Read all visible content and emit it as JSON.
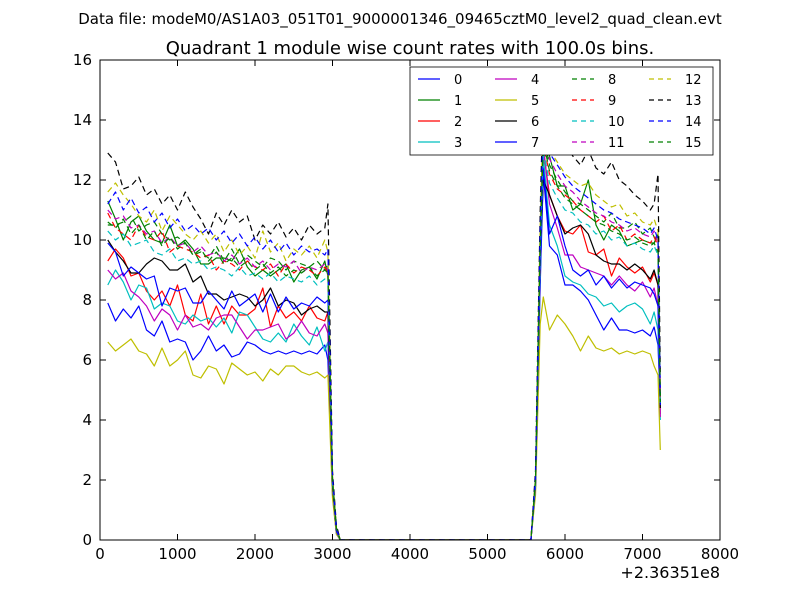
{
  "chart_data": {
    "type": "line",
    "suptitle": "Data file: modeM0/AS1A03_051T01_9000001346_09465cztM0_level2_quad_clean.evt",
    "title": "Quadrant 1 module wise count rates with 100.0s bins.",
    "xlabel": "",
    "ylabel": "",
    "x_offset_label": "+2.36351e8",
    "xlim": [
      0,
      8000
    ],
    "ylim": [
      0,
      16
    ],
    "x_ticks": [
      0,
      1000,
      2000,
      3000,
      4000,
      5000,
      6000,
      7000,
      8000
    ],
    "y_ticks": [
      0,
      2,
      4,
      6,
      8,
      10,
      12,
      14,
      16
    ],
    "legend_position": "top-right",
    "legend_columns": 4,
    "grid": false,
    "x": [
      100,
      200,
      300,
      400,
      500,
      600,
      700,
      800,
      900,
      1000,
      1100,
      1200,
      1300,
      1400,
      1500,
      1600,
      1700,
      1800,
      1900,
      2000,
      2100,
      2200,
      2300,
      2400,
      2500,
      2600,
      2700,
      2800,
      2900,
      2940,
      3000,
      3050,
      3100,
      3200,
      3500,
      4000,
      4500,
      5000,
      5400,
      5560,
      5620,
      5680,
      5720,
      5800,
      5900,
      6000,
      6100,
      6200,
      6300,
      6400,
      6500,
      6600,
      6700,
      6800,
      6900,
      7000,
      7100,
      7150,
      7200,
      7230
    ],
    "series": [
      {
        "name": "0",
        "color": "#0000ff",
        "style": "solid",
        "values": [
          7.9,
          7.3,
          7.7,
          7.4,
          7.8,
          7.0,
          6.8,
          7.3,
          6.6,
          6.7,
          6.6,
          6.0,
          6.3,
          6.8,
          6.3,
          6.5,
          6.1,
          6.2,
          6.6,
          6.5,
          6.3,
          6.2,
          6.3,
          6.2,
          6.3,
          6.2,
          6.3,
          6.2,
          6.5,
          6.0,
          1.5,
          0.2,
          0,
          0,
          0,
          0,
          0,
          0,
          0,
          0,
          1.8,
          8.5,
          12.2,
          9.8,
          9.5,
          8.5,
          8.5,
          8.3,
          8.0,
          7.5,
          7.0,
          7.4,
          7.0,
          7.0,
          6.9,
          7.0,
          6.8,
          7.1,
          6.5,
          4.5
        ]
      },
      {
        "name": "1",
        "color": "#008000",
        "style": "solid",
        "values": [
          11.3,
          10.7,
          10.0,
          10.6,
          10.8,
          10.3,
          10.0,
          9.9,
          10.5,
          9.8,
          10.0,
          9.7,
          9.2,
          9.2,
          9.4,
          9.4,
          9.3,
          9.7,
          9.1,
          8.8,
          9.0,
          8.8,
          9.0,
          9.2,
          8.6,
          9.0,
          9.1,
          8.7,
          9.3,
          8.8,
          2.0,
          0.4,
          0,
          0,
          0,
          0,
          0,
          0,
          0,
          0,
          1.9,
          9.5,
          13.6,
          12.8,
          11.8,
          11.8,
          11.0,
          11.2,
          12.0,
          10.5,
          10.0,
          10.5,
          10.3,
          9.8,
          9.9,
          10.0,
          9.9,
          9.9,
          10.2,
          4.5
        ]
      },
      {
        "name": "2",
        "color": "#ff0000",
        "style": "solid",
        "values": [
          9.3,
          9.7,
          9.4,
          8.8,
          8.9,
          8.3,
          8.0,
          8.3,
          7.8,
          8.5,
          7.5,
          7.3,
          8.2,
          7.2,
          7.8,
          7.2,
          7.8,
          7.5,
          7.5,
          7.7,
          8.4,
          7.1,
          7.8,
          7.4,
          7.6,
          7.3,
          7.8,
          7.4,
          7.3,
          7.6,
          1.8,
          0.3,
          0,
          0,
          0,
          0,
          0,
          0,
          0,
          0,
          1.8,
          9.2,
          13.0,
          11.5,
          10.8,
          10.3,
          10.2,
          10.5,
          9.6,
          9.5,
          9.7,
          8.8,
          9.4,
          9.1,
          8.9,
          9.1,
          8.6,
          8.9,
          8.5,
          4.2
        ]
      },
      {
        "name": "3",
        "color": "#00bfbf",
        "style": "solid",
        "values": [
          8.5,
          9.0,
          8.6,
          8.0,
          8.5,
          8.4,
          7.7,
          7.9,
          7.8,
          7.3,
          7.2,
          7.5,
          7.3,
          7.4,
          7.1,
          7.4,
          6.9,
          7.6,
          7.5,
          7.1,
          6.7,
          6.6,
          6.9,
          6.6,
          7.2,
          6.8,
          6.5,
          7.1,
          6.3,
          6.6,
          1.6,
          0.3,
          0,
          0,
          0,
          0,
          0,
          0,
          0,
          0,
          1.7,
          8.8,
          12.8,
          10.5,
          9.8,
          8.8,
          8.6,
          8.5,
          8.2,
          8.1,
          7.8,
          7.9,
          7.6,
          7.8,
          7.9,
          7.7,
          7.2,
          7.6,
          7.0,
          4.0
        ]
      },
      {
        "name": "4",
        "color": "#bf00bf",
        "style": "solid",
        "values": [
          9.0,
          8.7,
          8.9,
          8.3,
          8.1,
          7.8,
          7.3,
          7.7,
          7.5,
          7.0,
          7.5,
          7.1,
          7.2,
          7.0,
          7.4,
          7.5,
          7.5,
          7.1,
          6.7,
          7.0,
          7.0,
          7.1,
          7.2,
          6.7,
          6.9,
          7.3,
          6.9,
          6.8,
          7.2,
          6.9,
          1.6,
          0.3,
          0,
          0,
          0,
          0,
          0,
          0,
          0,
          0,
          1.8,
          9.0,
          13.2,
          11.2,
          10.4,
          9.5,
          9.5,
          9.1,
          9.0,
          8.9,
          8.8,
          8.5,
          8.8,
          8.5,
          8.3,
          8.6,
          8.1,
          8.4,
          7.8,
          4.1
        ]
      },
      {
        "name": "5",
        "color": "#bfbf00",
        "style": "solid",
        "values": [
          6.6,
          6.3,
          6.5,
          6.7,
          6.3,
          6.2,
          5.8,
          6.4,
          5.8,
          6.0,
          6.3,
          5.5,
          5.4,
          5.8,
          5.7,
          5.2,
          5.9,
          5.7,
          5.5,
          5.6,
          5.3,
          5.7,
          5.5,
          5.8,
          5.8,
          5.6,
          5.5,
          5.6,
          5.4,
          5.5,
          1.4,
          0.2,
          0,
          0,
          0,
          0,
          0,
          0,
          0,
          0,
          1.5,
          7.2,
          8.1,
          7.0,
          7.5,
          7.2,
          6.8,
          6.3,
          6.8,
          6.4,
          6.3,
          6.4,
          6.2,
          6.3,
          6.2,
          6.3,
          6.2,
          5.8,
          5.5,
          3.0
        ]
      },
      {
        "name": "6",
        "color": "#000000",
        "style": "solid",
        "values": [
          10.0,
          9.6,
          9.3,
          8.9,
          8.9,
          9.2,
          9.4,
          9.3,
          9.0,
          9.0,
          9.2,
          8.6,
          8.8,
          8.2,
          8.2,
          8.0,
          8.1,
          8.2,
          8.1,
          7.8,
          8.0,
          8.4,
          7.8,
          8.0,
          7.9,
          7.5,
          7.7,
          7.8,
          7.6,
          7.6,
          1.8,
          0.3,
          0,
          0,
          0,
          0,
          0,
          0,
          0,
          0,
          1.9,
          9.4,
          12.0,
          11.5,
          10.8,
          10.2,
          10.4,
          10.5,
          10.2,
          9.5,
          9.3,
          9.2,
          9.2,
          9.0,
          9.2,
          9.0,
          8.7,
          9.0,
          8.5,
          4.4
        ]
      },
      {
        "name": "7",
        "color": "#0000ff",
        "style": "solid",
        "values": [
          9.9,
          9.6,
          8.8,
          9.1,
          8.9,
          8.7,
          8.8,
          7.8,
          8.4,
          8.3,
          8.4,
          7.9,
          7.9,
          8.3,
          8.0,
          7.7,
          8.3,
          7.8,
          8.0,
          8.2,
          7.6,
          8.2,
          7.6,
          8.1,
          7.7,
          7.9,
          7.8,
          8.1,
          7.9,
          8.0,
          1.9,
          0.3,
          0,
          0,
          0,
          0,
          0,
          0,
          0,
          0,
          1.8,
          9.1,
          12.4,
          10.2,
          10.8,
          9.8,
          9.0,
          8.8,
          9.0,
          8.5,
          8.8,
          8.4,
          8.7,
          8.4,
          8.6,
          8.5,
          8.4,
          8.2,
          7.8,
          4.5
        ]
      },
      {
        "name": "8",
        "color": "#008000",
        "style": "dashed",
        "values": [
          10.5,
          10.5,
          10.6,
          10.8,
          10.3,
          10.5,
          10.6,
          10.2,
          10.0,
          10.1,
          9.9,
          9.5,
          9.6,
          9.4,
          9.8,
          9.3,
          9.7,
          9.2,
          9.5,
          9.3,
          9.1,
          9.4,
          9.3,
          9.0,
          9.3,
          9.2,
          9.1,
          9.3,
          9.0,
          9.2,
          2.0,
          0.4,
          0,
          0,
          0,
          0,
          0,
          0,
          0,
          0,
          2.0,
          10.1,
          13.5,
          12.5,
          12.0,
          11.6,
          11.3,
          11.2,
          11.0,
          10.8,
          10.6,
          10.9,
          10.4,
          10.4,
          10.6,
          10.2,
          10.4,
          10.1,
          10.0,
          4.8
        ]
      },
      {
        "name": "9",
        "color": "#ff0000",
        "style": "dashed",
        "values": [
          10.9,
          10.4,
          10.2,
          10.0,
          10.5,
          10.1,
          10.0,
          10.3,
          9.6,
          9.8,
          9.7,
          9.6,
          9.4,
          9.5,
          9.0,
          9.3,
          9.2,
          9.0,
          9.3,
          9.1,
          9.0,
          9.2,
          8.8,
          9.2,
          8.9,
          9.1,
          9.0,
          8.8,
          9.1,
          8.9,
          2.0,
          0.4,
          0,
          0,
          0,
          0,
          0,
          0,
          0,
          0,
          2.0,
          9.9,
          13.2,
          12.2,
          11.7,
          11.5,
          11.3,
          11.0,
          10.8,
          10.6,
          10.8,
          10.3,
          10.5,
          10.0,
          10.2,
          10.0,
          9.9,
          10.1,
          9.8,
          4.7
        ]
      },
      {
        "name": "10",
        "color": "#00bfbf",
        "style": "dashed",
        "values": [
          10.3,
          10.0,
          10.2,
          9.8,
          9.9,
          10.0,
          9.6,
          9.5,
          9.7,
          9.3,
          9.4,
          9.2,
          9.3,
          9.0,
          9.1,
          9.0,
          8.8,
          9.1,
          8.8,
          8.9,
          8.7,
          8.9,
          8.6,
          8.8,
          8.7,
          8.6,
          8.8,
          8.5,
          8.7,
          8.6,
          1.9,
          0.4,
          0,
          0,
          0,
          0,
          0,
          0,
          0,
          0,
          1.9,
          9.6,
          13.0,
          11.9,
          11.4,
          11.0,
          10.9,
          10.6,
          10.5,
          10.2,
          10.3,
          10.0,
          10.1,
          9.8,
          9.9,
          9.7,
          9.6,
          9.8,
          9.5,
          4.5
        ]
      },
      {
        "name": "11",
        "color": "#bf00bf",
        "style": "dashed",
        "values": [
          11.0,
          10.7,
          10.8,
          10.4,
          10.5,
          10.2,
          10.3,
          9.9,
          10.1,
          9.8,
          9.9,
          9.6,
          9.8,
          9.5,
          9.6,
          9.3,
          9.5,
          9.2,
          9.4,
          9.1,
          9.3,
          9.0,
          9.2,
          9.1,
          9.3,
          8.9,
          9.1,
          9.0,
          9.2,
          9.0,
          2.0,
          0.4,
          0,
          0,
          0,
          0,
          0,
          0,
          0,
          0,
          2.0,
          10.0,
          13.8,
          12.7,
          12.2,
          11.8,
          11.6,
          11.3,
          11.1,
          10.9,
          10.8,
          10.6,
          10.5,
          10.3,
          10.4,
          10.2,
          10.1,
          10.3,
          9.9,
          4.8
        ]
      },
      {
        "name": "12",
        "color": "#bfbf00",
        "style": "dashed",
        "values": [
          11.6,
          11.9,
          11.5,
          11.2,
          10.8,
          10.6,
          11.0,
          10.3,
          10.8,
          10.5,
          10.2,
          10.0,
          10.3,
          9.9,
          10.2,
          9.6,
          10.0,
          9.5,
          9.8,
          9.4,
          10.3,
          9.6,
          9.9,
          9.3,
          9.7,
          9.5,
          9.8,
          9.4,
          10.0,
          9.6,
          2.1,
          0.4,
          0,
          0,
          0,
          0,
          0,
          0,
          0,
          0,
          2.1,
          10.5,
          14.2,
          13.0,
          12.6,
          12.2,
          12.0,
          11.8,
          11.9,
          11.5,
          11.3,
          11.1,
          11.2,
          10.8,
          10.9,
          10.6,
          10.5,
          10.7,
          10.3,
          5.0
        ]
      },
      {
        "name": "13",
        "color": "#000000",
        "style": "dashed",
        "values": [
          12.9,
          12.6,
          11.7,
          11.8,
          12.1,
          11.5,
          11.7,
          11.2,
          11.5,
          11.0,
          11.6,
          11.1,
          10.7,
          10.2,
          10.9,
          10.5,
          11.0,
          10.6,
          10.8,
          10.0,
          10.5,
          10.2,
          10.6,
          10.1,
          10.4,
          10.0,
          10.5,
          10.2,
          10.4,
          11.2,
          2.3,
          0.5,
          0,
          0,
          0,
          0,
          0,
          0,
          0,
          0,
          2.3,
          11.0,
          15.0,
          14.2,
          13.6,
          13.2,
          12.8,
          12.5,
          13.0,
          12.4,
          12.2,
          12.6,
          12.0,
          11.8,
          11.5,
          11.3,
          11.0,
          11.2,
          12.2,
          5.5
        ]
      },
      {
        "name": "14",
        "color": "#0000ff",
        "style": "dashed",
        "values": [
          11.2,
          11.6,
          11.0,
          11.4,
          10.9,
          11.1,
          10.6,
          10.9,
          10.4,
          10.7,
          10.3,
          10.5,
          10.2,
          10.4,
          10.0,
          10.3,
          9.9,
          10.2,
          9.8,
          10.1,
          9.7,
          10.0,
          9.6,
          9.9,
          9.5,
          9.8,
          9.6,
          9.7,
          9.5,
          9.7,
          2.1,
          0.4,
          0,
          0,
          0,
          0,
          0,
          0,
          0,
          0,
          2.1,
          10.4,
          14.0,
          12.9,
          12.5,
          12.1,
          11.8,
          11.6,
          11.4,
          11.2,
          11.0,
          10.9,
          10.7,
          10.6,
          10.5,
          10.4,
          10.2,
          10.4,
          10.0,
          4.9
        ]
      },
      {
        "name": "15",
        "color": "#008000",
        "style": "dashed",
        "values": [
          10.6,
          10.4,
          10.7,
          10.2,
          10.5,
          10.0,
          10.3,
          9.8,
          10.1,
          9.7,
          9.9,
          9.5,
          9.7,
          9.3,
          9.6,
          9.2,
          9.4,
          9.1,
          9.3,
          9.0,
          9.2,
          8.9,
          9.1,
          8.8,
          9.0,
          8.9,
          9.1,
          8.8,
          9.0,
          8.9,
          2.0,
          0.4,
          0,
          0,
          0,
          0,
          0,
          0,
          0,
          0,
          2.0,
          9.8,
          13.3,
          12.3,
          11.8,
          11.4,
          11.2,
          11.0,
          10.8,
          10.6,
          10.5,
          10.3,
          10.2,
          10.0,
          10.1,
          9.9,
          9.8,
          9.9,
          9.6,
          4.6
        ]
      }
    ]
  }
}
